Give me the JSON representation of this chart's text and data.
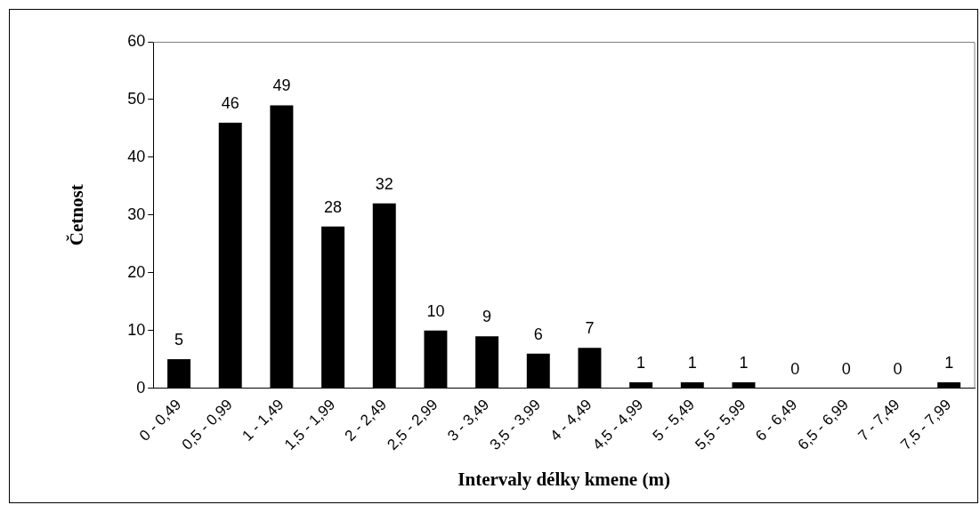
{
  "chart_data": {
    "type": "bar",
    "xlabel": "Intervaly délky kmene (m)",
    "ylabel": "Četnost",
    "categories": [
      "0 - 0,49",
      "0,5 - 0,99",
      "1 - 1,49",
      "1,5 - 1,99",
      "2 - 2,49",
      "2,5 - 2,99",
      "3 - 3,49",
      "3,5 - 3,99",
      "4 - 4,49",
      "4,5 - 4,99",
      "5 - 5,49",
      "5,5 - 5,99",
      "6 - 6,49",
      "6,5 - 6,99",
      "7 - 7,49",
      "7,5 - 7,99"
    ],
    "values": [
      5,
      46,
      49,
      28,
      32,
      10,
      9,
      6,
      7,
      1,
      1,
      1,
      0,
      0,
      0,
      1
    ],
    "color": "#000000",
    "ylim": [
      0,
      60
    ],
    "yticks": [
      0,
      10,
      20,
      30,
      40,
      50,
      60
    ],
    "grid": false,
    "legend": false,
    "data_labels": true
  }
}
